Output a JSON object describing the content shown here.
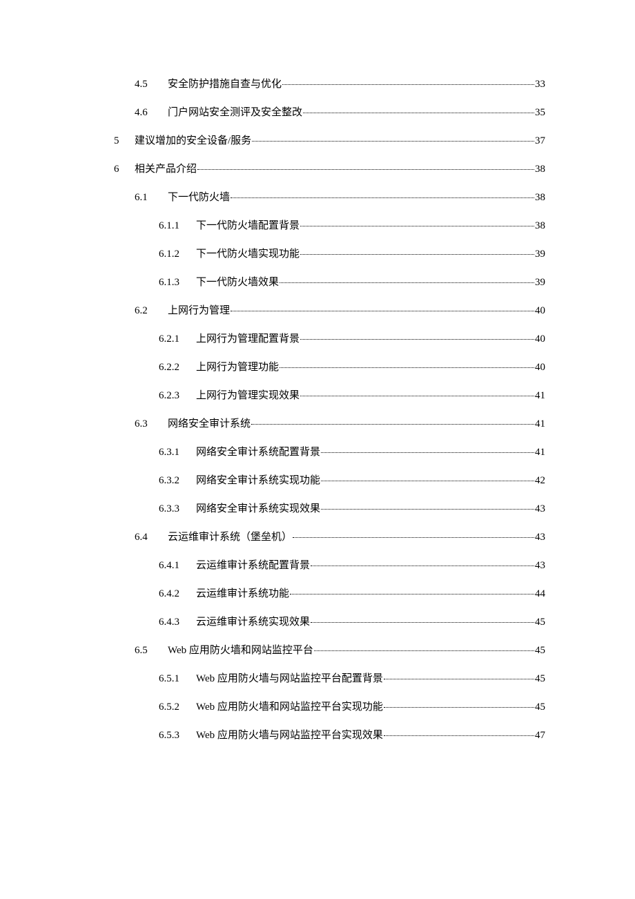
{
  "colors": {
    "background": "#ffffff",
    "text": "#000000",
    "dots": "#000000"
  },
  "typography": {
    "font_family": "SimSun, 宋体, Times New Roman, serif",
    "font_size_pt": 11
  },
  "toc": {
    "entries": [
      {
        "level": 2,
        "num": "4.5",
        "title": "安全防护措施自查与优化",
        "page": "33"
      },
      {
        "level": 2,
        "num": "4.6",
        "title": "门户网站安全测评及安全整改",
        "page": "35"
      },
      {
        "level": 1,
        "num": "5",
        "title": "建议增加的安全设备/服务 ",
        "page": "37"
      },
      {
        "level": 1,
        "num": "6",
        "title": "相关产品介绍",
        "page": "38"
      },
      {
        "level": 2,
        "num": "6.1",
        "title": "下一代防火墙",
        "page": "38"
      },
      {
        "level": 3,
        "num": "6.1.1",
        "title": "下一代防火墙配置背景",
        "page": "38"
      },
      {
        "level": 3,
        "num": "6.1.2",
        "title": "下一代防火墙实现功能",
        "page": "39"
      },
      {
        "level": 3,
        "num": "6.1.3",
        "title": "下一代防火墙效果",
        "page": "39"
      },
      {
        "level": 2,
        "num": "6.2",
        "title": "上网行为管理",
        "page": "40"
      },
      {
        "level": 3,
        "num": "6.2.1",
        "title": "上网行为管理配置背景",
        "page": "40"
      },
      {
        "level": 3,
        "num": "6.2.2",
        "title": "上网行为管理功能",
        "page": "40"
      },
      {
        "level": 3,
        "num": "6.2.3",
        "title": "上网行为管理实现效果",
        "page": "41"
      },
      {
        "level": 2,
        "num": "6.3",
        "title": "网络安全审计系统",
        "page": "41"
      },
      {
        "level": 3,
        "num": "6.3.1",
        "title": "网络安全审计系统配置背景",
        "page": "41"
      },
      {
        "level": 3,
        "num": "6.3.2",
        "title": "网络安全审计系统实现功能",
        "page": "42"
      },
      {
        "level": 3,
        "num": "6.3.3",
        "title": "网络安全审计系统实现效果",
        "page": "43"
      },
      {
        "level": 2,
        "num": "6.4",
        "title": "云运维审计系统（堡垒机）",
        "page": "43"
      },
      {
        "level": 3,
        "num": "6.4.1",
        "title": "云运维审计系统配置背景",
        "page": "43"
      },
      {
        "level": 3,
        "num": "6.4.2",
        "title": "云运维审计系统功能",
        "page": "44"
      },
      {
        "level": 3,
        "num": "6.4.3",
        "title": "云运维审计系统实现效果",
        "page": "45"
      },
      {
        "level": 2,
        "num": "6.5",
        "title": "Web 应用防火墙和网站监控平台 ",
        "page": "45"
      },
      {
        "level": 3,
        "num": "6.5.1",
        "title": "Web 应用防火墙与网站监控平台配置背景 ",
        "page": "45"
      },
      {
        "level": 3,
        "num": "6.5.2",
        "title": "Web 应用防火墙和网站监控平台实现功能 ",
        "page": "45"
      },
      {
        "level": 3,
        "num": "6.5.3",
        "title": "Web 应用防火墙与网站监控平台实现效果 ",
        "page": "47"
      }
    ]
  }
}
